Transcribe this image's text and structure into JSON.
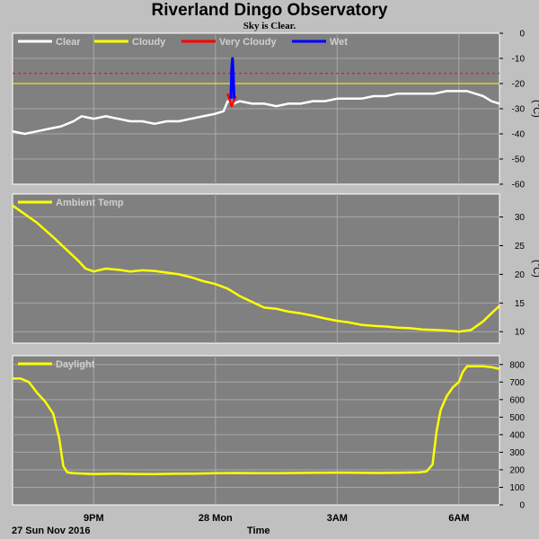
{
  "header": {
    "title": "Riverland Dingo Observatory",
    "subtitle": "Sky is Clear."
  },
  "footer": {
    "date_label": "27 Sun Nov 2016",
    "time_label": "Time"
  },
  "colors": {
    "panel_bg": "#808080",
    "page_bg": "#c0c0c0",
    "clear": "#ffffff",
    "cloudy": "#ffff00",
    "very_cloudy": "#ff0000",
    "wet": "#0000ff",
    "ambient": "#ffff00",
    "daylight": "#ffff00",
    "threshold_line": "#ff0000"
  },
  "chart_data": [
    {
      "type": "line",
      "name": "sky-temperature",
      "legend": [
        "Clear",
        "Cloudy",
        "Very Cloudy",
        "Wet"
      ],
      "unit_label": "(°C)",
      "ylim": [
        -60,
        0
      ],
      "yticks": [
        0,
        -10,
        -20,
        -30,
        -40,
        -50,
        -60
      ],
      "x_ticks": [
        "9PM",
        "28 Mon",
        "3AM",
        "6AM"
      ],
      "x_tick_hours": [
        21,
        24,
        27,
        30
      ],
      "xlim_hours": [
        19.0,
        31.0
      ],
      "threshold_lines": [
        {
          "y": -16,
          "style": "dashed",
          "color": "#ff0000"
        },
        {
          "y": -20,
          "style": "solid",
          "color": "#ffff00"
        }
      ],
      "grid": true,
      "legend_placement": "top-left",
      "series": [
        {
          "name": "Clear",
          "color": "#ffffff",
          "x": [
            19.0,
            19.3,
            19.6,
            19.9,
            20.2,
            20.5,
            20.7,
            21.0,
            21.3,
            21.6,
            21.9,
            22.2,
            22.5,
            22.8,
            23.1,
            23.4,
            23.7,
            24.0,
            24.2,
            24.3,
            24.45,
            24.6,
            24.9,
            25.2,
            25.5,
            25.8,
            26.1,
            26.4,
            26.7,
            27.0,
            27.3,
            27.6,
            27.9,
            28.2,
            28.5,
            28.8,
            29.1,
            29.4,
            29.7,
            30.0,
            30.2,
            30.4,
            30.6,
            30.8,
            31.0
          ],
          "values": [
            -39,
            -40,
            -39,
            -38,
            -37,
            -35,
            -33,
            -34,
            -33,
            -34,
            -35,
            -35,
            -36,
            -35,
            -35,
            -34,
            -33,
            -32,
            -31,
            -27,
            -28,
            -27,
            -28,
            -28,
            -29,
            -28,
            -28,
            -27,
            -27,
            -26,
            -26,
            -26,
            -25,
            -25,
            -24,
            -24,
            -24,
            -24,
            -23,
            -23,
            -23,
            -24,
            -25,
            -27,
            -28
          ]
        },
        {
          "name": "Very Cloudy",
          "color": "#ff0000",
          "x": [
            24.3,
            24.4,
            24.5
          ],
          "values": [
            -24,
            -29,
            -25
          ]
        },
        {
          "name": "Wet",
          "color": "#0000ff",
          "x": [
            24.38,
            24.4,
            24.42,
            24.44,
            24.46
          ],
          "values": [
            -26,
            -14,
            -10,
            -16,
            -26
          ]
        }
      ]
    },
    {
      "type": "line",
      "name": "ambient-temperature",
      "legend": [
        "Ambient Temp"
      ],
      "unit_label": "(°C)",
      "ylim": [
        8,
        34
      ],
      "yticks": [
        10,
        15,
        20,
        25,
        30
      ],
      "x_ticks": [
        "9PM",
        "28 Mon",
        "3AM",
        "6AM"
      ],
      "x_tick_hours": [
        21,
        24,
        27,
        30
      ],
      "xlim_hours": [
        19.0,
        31.0
      ],
      "grid": true,
      "legend_placement": "top-left",
      "series": [
        {
          "name": "Ambient Temp",
          "color": "#ffff00",
          "x": [
            19.0,
            19.3,
            19.6,
            20.0,
            20.3,
            20.6,
            20.8,
            21.0,
            21.3,
            21.6,
            21.9,
            22.2,
            22.5,
            22.8,
            23.1,
            23.4,
            23.7,
            24.0,
            24.3,
            24.6,
            24.9,
            25.2,
            25.5,
            25.8,
            26.1,
            26.4,
            26.7,
            27.0,
            27.3,
            27.6,
            27.9,
            28.2,
            28.5,
            28.8,
            29.1,
            29.4,
            29.7,
            30.0,
            30.3,
            30.6,
            30.8,
            31.0
          ],
          "values": [
            32.0,
            30.5,
            29.0,
            26.5,
            24.5,
            22.5,
            21.0,
            20.5,
            21.0,
            20.8,
            20.5,
            20.7,
            20.6,
            20.3,
            20.0,
            19.5,
            18.8,
            18.3,
            17.5,
            16.2,
            15.2,
            14.2,
            14.0,
            13.5,
            13.2,
            12.8,
            12.3,
            11.9,
            11.6,
            11.2,
            11.0,
            10.9,
            10.7,
            10.6,
            10.4,
            10.3,
            10.2,
            10.0,
            10.3,
            11.8,
            13.2,
            14.5
          ]
        }
      ]
    },
    {
      "type": "line",
      "name": "daylight",
      "legend": [
        "Daylight"
      ],
      "unit_label": "",
      "ylim": [
        0,
        850
      ],
      "yticks": [
        0,
        100,
        200,
        300,
        400,
        500,
        600,
        700,
        800
      ],
      "x_ticks": [
        "9PM",
        "28 Mon",
        "3AM",
        "6AM"
      ],
      "x_tick_hours": [
        21,
        24,
        27,
        30
      ],
      "xlim_hours": [
        19.0,
        31.0
      ],
      "grid": true,
      "legend_placement": "top-left",
      "series": [
        {
          "name": "Daylight",
          "color": "#ffff00",
          "x": [
            19.0,
            19.2,
            19.4,
            19.6,
            19.8,
            20.0,
            20.15,
            20.25,
            20.35,
            20.5,
            21.0,
            21.5,
            22.0,
            22.5,
            23.0,
            23.5,
            24.0,
            24.5,
            25.0,
            25.5,
            26.0,
            26.5,
            27.0,
            27.5,
            28.0,
            28.5,
            29.0,
            29.2,
            29.35,
            29.45,
            29.55,
            29.7,
            29.85,
            30.0,
            30.1,
            30.2,
            30.4,
            30.6,
            30.8,
            31.0
          ],
          "values": [
            720,
            720,
            700,
            640,
            590,
            520,
            380,
            220,
            185,
            180,
            175,
            178,
            176,
            175,
            177,
            178,
            180,
            182,
            181,
            180,
            182,
            183,
            184,
            183,
            182,
            183,
            185,
            190,
            230,
            420,
            540,
            620,
            670,
            700,
            760,
            790,
            790,
            790,
            785,
            775
          ]
        }
      ]
    }
  ]
}
